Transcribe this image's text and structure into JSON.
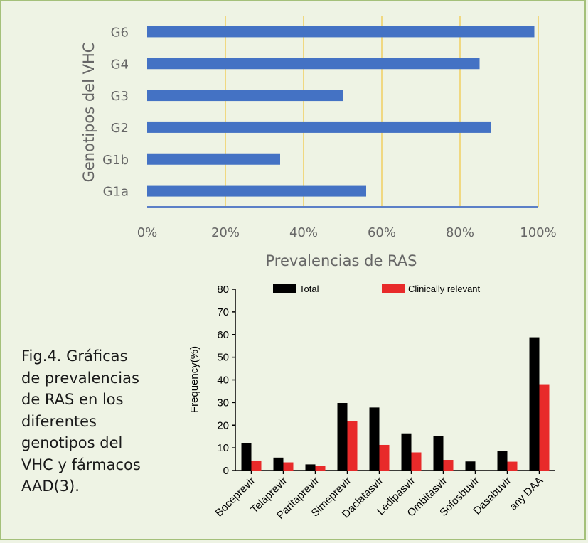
{
  "caption": {
    "lines": [
      "Fig.4. Gráficas",
      "de prevalencias",
      "de RAS en los",
      "diferentes",
      "genotipos del",
      "VHC y fármacos",
      "AAD(3)."
    ]
  },
  "colors": {
    "hbar": "#4472c4",
    "gridline": "#f0d060",
    "total": "#000000",
    "clinically_relevant": "#e82a2a",
    "frame": "#a4c07a",
    "background": "#eef3e4"
  },
  "chart_data": [
    {
      "type": "bar",
      "orientation": "horizontal",
      "categories": [
        "G6",
        "G4",
        "G3",
        "G2",
        "G1b",
        "G1a"
      ],
      "values": [
        99,
        85,
        50,
        88,
        34,
        56
      ],
      "xlabel": "Prevalencias de RAS",
      "ylabel": "Genotipos del VHC",
      "xlim": [
        0,
        100
      ],
      "xticks": [
        "0%",
        "20%",
        "40%",
        "60%",
        "80%",
        "100%"
      ],
      "grid": true
    },
    {
      "type": "bar",
      "categories": [
        "Boceprevir",
        "Telaprevir",
        "Paritaprevir",
        "Simeprevir",
        "Daclatasvir",
        "Ledipasvir",
        "Ombitasvir",
        "Sofosbuvir",
        "Dasabuvir",
        "any DAA"
      ],
      "series": [
        {
          "name": "Total",
          "values": [
            12.2,
            5.7,
            2.7,
            29.8,
            27.8,
            16.4,
            15.1,
            4.0,
            8.6,
            58.8
          ]
        },
        {
          "name": "Clinically relevant",
          "values": [
            4.4,
            3.6,
            2.1,
            21.7,
            11.3,
            8.0,
            4.7,
            0,
            3.9,
            38.1
          ]
        }
      ],
      "ylabel": "Frequency(%)",
      "ylim": [
        0,
        80
      ],
      "yticks": [
        "0",
        "10",
        "20",
        "30",
        "40",
        "50",
        "60",
        "70",
        "80"
      ],
      "legend": "top"
    }
  ]
}
